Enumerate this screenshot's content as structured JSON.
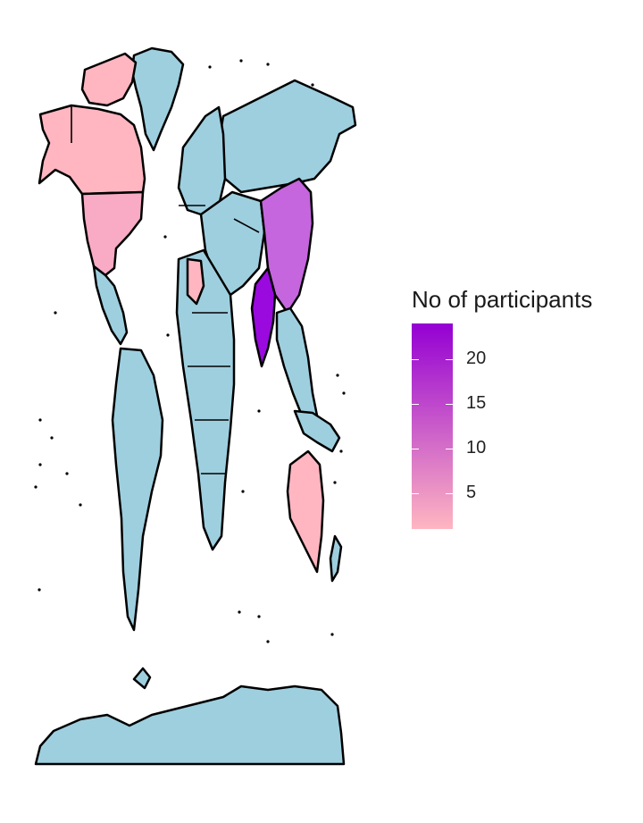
{
  "legend": {
    "title": "No of participants",
    "min": 1,
    "max": 24,
    "color_low": "#ffb6c1",
    "color_high": "#9400d3",
    "ticks": [
      {
        "value": 5,
        "label": "5"
      },
      {
        "value": 10,
        "label": "10"
      },
      {
        "value": 15,
        "label": "15"
      },
      {
        "value": 20,
        "label": "20"
      }
    ]
  },
  "map": {
    "no_data_color": "#9ecfdf",
    "outline_color": "#000000",
    "background": "#ffffff",
    "regions": [
      {
        "name": "Greenland",
        "value": null
      },
      {
        "name": "Canada",
        "value": 2
      },
      {
        "name": "Alaska",
        "value": 2
      },
      {
        "name": "United States",
        "value": 3
      },
      {
        "name": "Mexico",
        "value": null
      },
      {
        "name": "South America",
        "value": null
      },
      {
        "name": "Europe",
        "value": null
      },
      {
        "name": "Russia",
        "value": null
      },
      {
        "name": "Africa",
        "value": null
      },
      {
        "name": "Middle East",
        "value": null
      },
      {
        "name": "China",
        "value": 17
      },
      {
        "name": "India",
        "value": 24
      },
      {
        "name": "Southeast Asia",
        "value": null
      },
      {
        "name": "Australia",
        "value": 2
      },
      {
        "name": "Antarctica",
        "value": null
      }
    ]
  }
}
